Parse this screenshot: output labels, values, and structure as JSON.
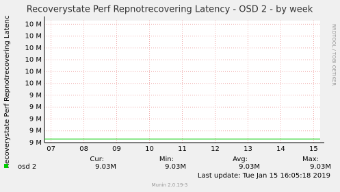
{
  "chart_data": {
    "type": "line",
    "title": "Recoverystate Perf Repnotrecovering Latency - OSD 2 - by week",
    "y_label": "Recoverystate Perf Repnotrecovering Latenc",
    "side_label": "RRDTOOL / TOBI OETIKER",
    "xlim": [
      6.8,
      15.2
    ],
    "xticks": [
      {
        "value": 7,
        "label": "07"
      },
      {
        "value": 8,
        "label": "08"
      },
      {
        "value": 9,
        "label": "09"
      },
      10,
      11,
      12,
      13,
      14,
      15
    ],
    "ylim": [
      9000000,
      10000000
    ],
    "yticks": [
      {
        "value": 9000000,
        "label": "9 M"
      },
      {
        "value": 9100000,
        "label": "9 M"
      },
      {
        "value": 9200000,
        "label": "9 M"
      },
      {
        "value": 9300000,
        "label": "9 M"
      },
      {
        "value": 9400000,
        "label": "9 M"
      },
      {
        "value": 9500000,
        "label": "10 M"
      },
      {
        "value": 9600000,
        "label": "10 M"
      },
      {
        "value": 9700000,
        "label": "10 M"
      },
      {
        "value": 9800000,
        "label": "10 M"
      },
      {
        "value": 9900000,
        "label": "10 M"
      },
      {
        "value": 10000000,
        "label": "10 M"
      }
    ],
    "grid": true,
    "x": [
      6.8,
      15.2
    ],
    "series": [
      {
        "name": "osd 2",
        "color": "#00cc00",
        "values": [
          9030000,
          9030000
        ]
      }
    ],
    "stats": [
      {
        "label": "Cur:",
        "value": "9.03M"
      },
      {
        "label": "Min:",
        "value": "9.03M"
      },
      {
        "label": "Avg:",
        "value": "9.03M"
      },
      {
        "label": "Max:",
        "value": "9.03M"
      }
    ],
    "last_update": "Last update: Tue Jan 15 16:05:18 2019",
    "footer": "Munin 2.0.19-3"
  }
}
